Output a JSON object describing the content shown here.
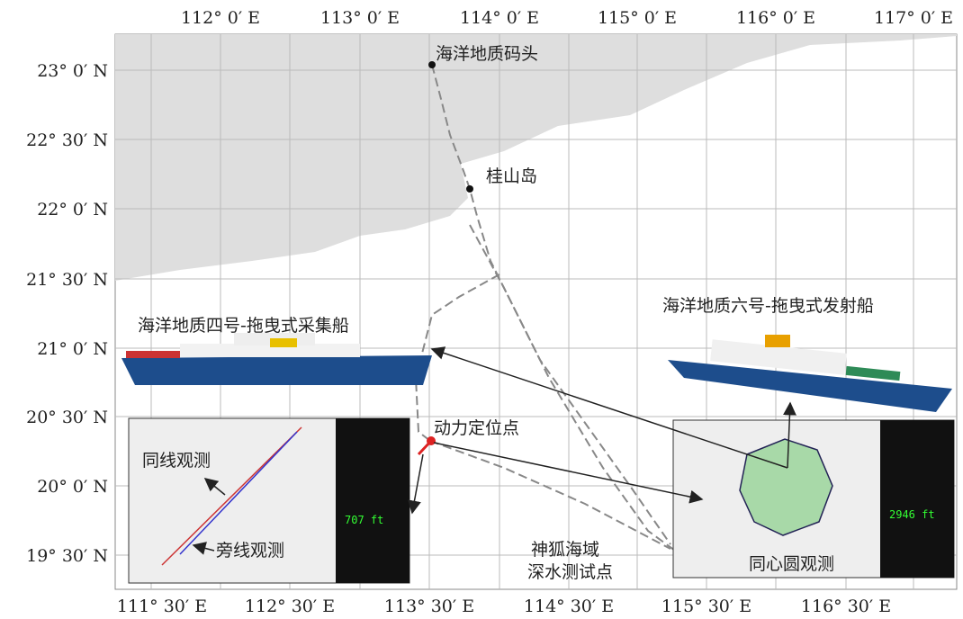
{
  "axes": {
    "top": [
      "112° 0′ E",
      "113° 0′ E",
      "114° 0′ E",
      "115° 0′ E",
      "116° 0′ E",
      "117° 0′ E"
    ],
    "bottom": [
      "111° 30′ E",
      "112° 30′ E",
      "113° 30′ E",
      "114° 30′ E",
      "115° 30′ E",
      "116° 30′ E"
    ],
    "left": [
      "23° 0′ N",
      "22° 30′ N",
      "22° 0′ N",
      "21° 30′ N",
      "21° 0′ N",
      "20° 30′ N",
      "20° 0′ N",
      "19° 30′ N"
    ]
  },
  "places": {
    "port": "海洋地质码头",
    "island": "桂山岛",
    "dp_point": "动力定位点",
    "test_site": [
      "神狐海域",
      "深水测试点"
    ]
  },
  "ships": {
    "receiver": "海洋地质四号-拖曳式采集船",
    "source": "海洋地质六号-拖曳式发射船"
  },
  "insets": {
    "left": {
      "labels": [
        "同线观测",
        "旁线观测"
      ],
      "readout": "707 ft"
    },
    "right": {
      "label": "同心圆观测",
      "readout": "2946 ft"
    }
  }
}
